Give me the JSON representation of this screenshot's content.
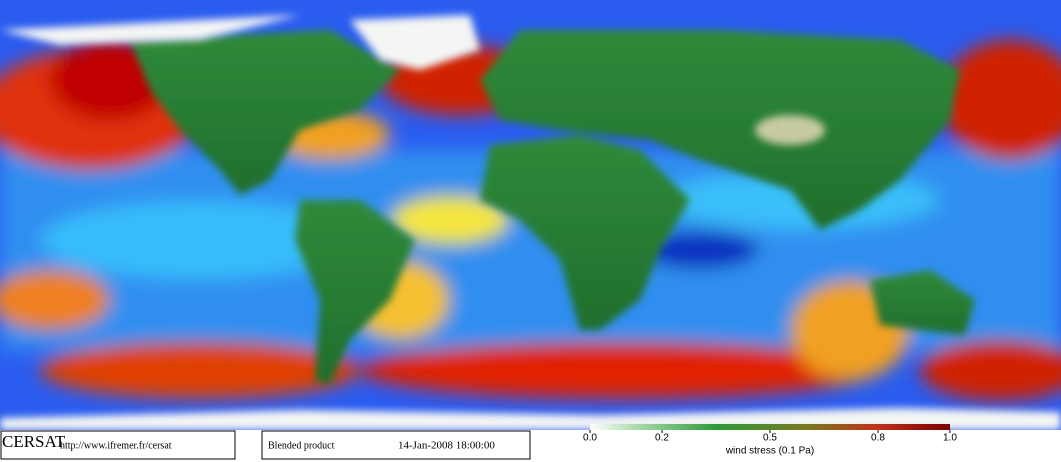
{
  "logo": {
    "title": "CERSAT",
    "url": "http://www.ifremer.fr/cersat"
  },
  "product": "Blended product",
  "timestamp": "14-Jan-2008 18:00:00",
  "colorbar": {
    "label": "wind stress (0.1 Pa)",
    "lim": [
      0,
      1
    ],
    "ticks": [
      {
        "value": 0,
        "label": "0.0"
      },
      0.2,
      0.5,
      0.8,
      {
        "value": 1,
        "label": "1.0"
      }
    ]
  }
}
